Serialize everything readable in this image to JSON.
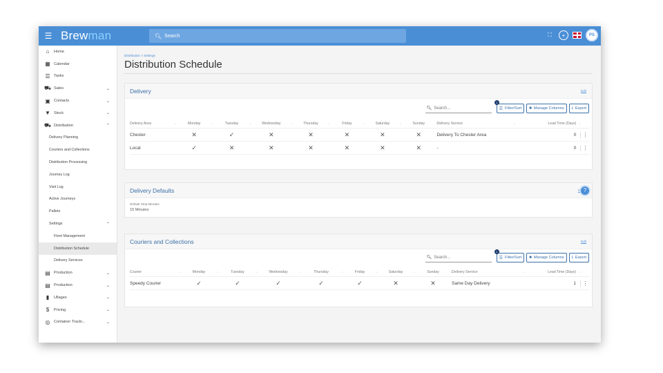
{
  "app": {
    "logo_a": "Brew",
    "logo_b": "man",
    "search_placeholder": "Search",
    "avatar": "PS"
  },
  "sidebar": {
    "items": [
      {
        "label": "Home",
        "icon": "home-icon"
      },
      {
        "label": "Calendar",
        "icon": "calendar-icon"
      },
      {
        "label": "Tasks",
        "icon": "list-icon"
      },
      {
        "label": "Sales",
        "icon": "cart-icon"
      },
      {
        "label": "Contacts",
        "icon": "contacts-icon"
      },
      {
        "label": "Stock",
        "icon": "filter-icon"
      },
      {
        "label": "Distribution",
        "icon": "truck-icon"
      }
    ],
    "distribution_sub": [
      "Delivery Planning",
      "Couriers and Collections",
      "Distribution Processing",
      "Journey Log",
      "Visit Log",
      "Active Journeys",
      "Pallets",
      "Settings"
    ],
    "settings_sub": [
      "Fleet Management",
      "Distribution Schedule",
      "Delivery Services"
    ],
    "bottom": [
      {
        "label": "Production",
        "icon": "cup-icon"
      },
      {
        "label": "Production",
        "icon": "cup-icon"
      },
      {
        "label": "Ullages",
        "icon": "bin-icon"
      },
      {
        "label": "Pricing",
        "icon": "dollar-icon"
      },
      {
        "label": "Container Tracki...",
        "icon": "target-icon"
      }
    ]
  },
  "page": {
    "breadcrumb": "Distribution > Settings",
    "title": "Distribution Schedule"
  },
  "delivery": {
    "title": "Delivery",
    "edit": "Edit",
    "search": "Search...",
    "filter": "Filter/Sort",
    "filter_badge": "1",
    "manage": "Manage Columns",
    "export": "Export",
    "columns": [
      "Delivery Area",
      "Monday",
      "Tuesday",
      "Wednesday",
      "Thursday",
      "Friday",
      "Saturday",
      "Sunday",
      "Delivery Service",
      "Lead Time (Days)"
    ],
    "rows": [
      [
        "Chester",
        "✕",
        "✓",
        "✕",
        "✕",
        "✕",
        "✕",
        "✕",
        "Delivery To Chester Area",
        "0"
      ],
      [
        "Local",
        "✓",
        "✕",
        "✕",
        "✕",
        "✕",
        "✕",
        "✕",
        "-",
        "0"
      ]
    ]
  },
  "defaults": {
    "title": "Delivery Defaults",
    "edit": "Edit",
    "label": "Default Stop Minutes",
    "value": "15 Minutes"
  },
  "couriers": {
    "title": "Couriers and Collections",
    "edit": "Edit",
    "search": "Search...",
    "filter": "Filter/Sort",
    "filter_badge": "1",
    "manage": "Manage Columns",
    "export": "Export",
    "columns": [
      "Courier",
      "Monday",
      "Tuesday",
      "Wednesday",
      "Thursday",
      "Friday",
      "Saturday",
      "Sunday",
      "Delivery Service",
      "Lead Time (Days)"
    ],
    "rows": [
      [
        "Speedy Courier",
        "✓",
        "✓",
        "✓",
        "✓",
        "✓",
        "✕",
        "✕",
        "Same Day Delivery",
        "1"
      ]
    ]
  }
}
